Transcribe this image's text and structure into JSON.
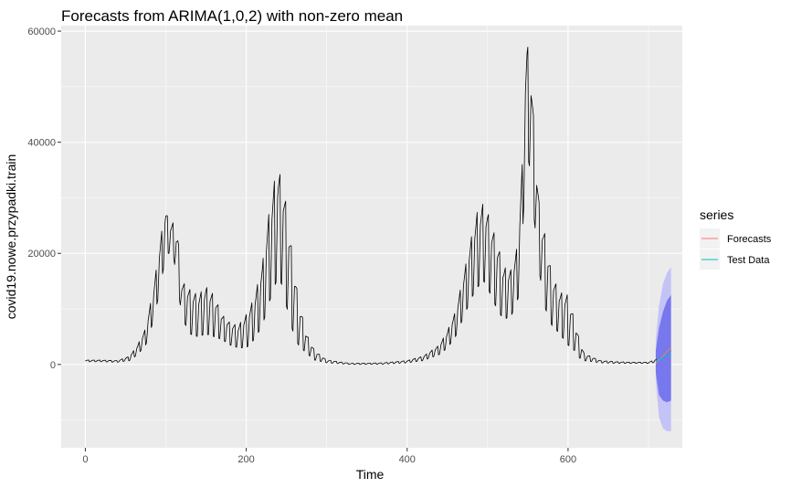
{
  "chart_data": {
    "type": "line",
    "title": "Forecasts from ARIMA(1,0,2) with non-zero mean",
    "xlabel": "Time",
    "ylabel": "covid19.nowe.przypadki.train",
    "xlim": [
      -30,
      742
    ],
    "ylim": [
      -15000,
      61000
    ],
    "x_ticks": [
      0,
      200,
      400,
      600
    ],
    "y_ticks": [
      0,
      20000,
      40000,
      60000
    ],
    "x_tick_labels": [
      "0",
      "200",
      "400",
      "600"
    ],
    "y_tick_labels": [
      "0",
      "20000",
      "40000",
      "60000"
    ],
    "grid": true,
    "legend": {
      "title": "series",
      "position": "right",
      "entries": [
        {
          "label": "Forecasts",
          "color": "#F8766D"
        },
        {
          "label": "Test Data",
          "color": "#00BFC4"
        }
      ]
    },
    "colors": {
      "panel": "#EBEBEB",
      "grid": "#FFFFFF",
      "train": "#000000",
      "forecast": "#F8766D",
      "test": "#00BFC4",
      "band80": "#7777EE",
      "band95": "#C3C3F5"
    },
    "train_envelope": {
      "x": [
        0,
        20,
        40,
        55,
        65,
        75,
        85,
        92,
        98,
        100,
        104,
        110,
        115,
        120,
        130,
        140,
        150,
        160,
        170,
        180,
        190,
        200,
        210,
        220,
        228,
        235,
        240,
        245,
        250,
        258,
        265,
        275,
        285,
        300,
        330,
        370,
        400,
        420,
        440,
        450,
        460,
        470,
        480,
        488,
        495,
        500,
        505,
        512,
        520,
        530,
        538,
        543,
        546,
        549,
        553,
        558,
        565,
        572,
        580,
        590,
        600,
        608,
        614,
        620,
        640,
        660,
        680,
        700,
        710
      ],
      "hi": [
        800,
        800,
        700,
        1500,
        3500,
        6500,
        14000,
        21000,
        27000,
        28000,
        25500,
        25500,
        23000,
        15000,
        13500,
        12500,
        14000,
        12500,
        9000,
        7500,
        7000,
        9000,
        12000,
        18000,
        27000,
        33000,
        35000,
        33000,
        28500,
        19000,
        11500,
        5500,
        2500,
        800,
        200,
        300,
        700,
        1500,
        3500,
        6000,
        9500,
        16000,
        23000,
        28000,
        29000,
        27500,
        25000,
        22000,
        17500,
        17000,
        22000,
        36000,
        52000,
        57500,
        56000,
        42000,
        27000,
        23000,
        16000,
        13000,
        12500,
        8000,
        4500,
        2000,
        700,
        500,
        400,
        400,
        1000
      ],
      "lo": [
        500,
        500,
        400,
        700,
        1800,
        3500,
        8000,
        13000,
        18000,
        20000,
        20000,
        19000,
        14000,
        8500,
        5500,
        5000,
        5500,
        5000,
        4500,
        3500,
        3000,
        3000,
        4500,
        7000,
        11000,
        14000,
        16000,
        14000,
        10500,
        6000,
        3500,
        2000,
        800,
        300,
        0,
        50,
        300,
        700,
        1800,
        3000,
        5000,
        8500,
        12000,
        14000,
        15000,
        14000,
        12000,
        10000,
        8000,
        9000,
        12000,
        22000,
        32000,
        38000,
        35000,
        26000,
        16000,
        10000,
        7000,
        5500,
        3500,
        2500,
        1200,
        700,
        300,
        200,
        200,
        200,
        400
      ]
    },
    "forecast": {
      "x": [
        709,
        713,
        718,
        723,
        728
      ],
      "mean": [
        200,
        800,
        1500,
        2300,
        3000
      ],
      "lo80": [
        -1500,
        -5500,
        -6500,
        -6800,
        -6500
      ],
      "hi80": [
        2500,
        6500,
        9500,
        11500,
        12500
      ],
      "lo95": [
        -3000,
        -9500,
        -11500,
        -12000,
        -12000
      ],
      "hi95": [
        4500,
        10500,
        14500,
        16500,
        17500
      ]
    },
    "test_data": {
      "x": [
        709,
        712,
        715,
        718,
        721,
        724,
        728
      ],
      "y": [
        500,
        800,
        1200,
        900,
        1600,
        1500,
        2500
      ]
    }
  }
}
